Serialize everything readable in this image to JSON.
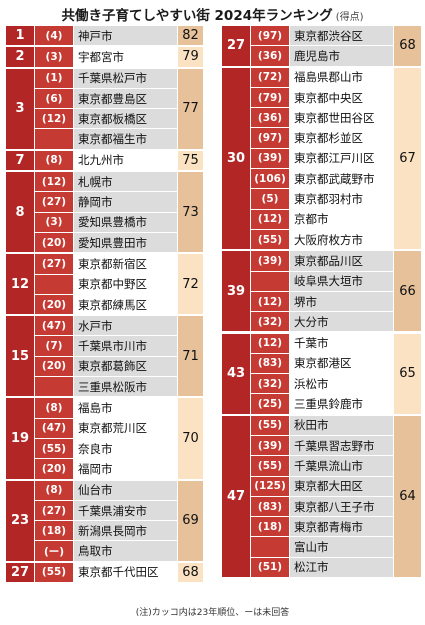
{
  "title": "共働き子育てしやすい街 2024年ランキング",
  "subtitle": "(得点)",
  "note": "(注)カッコ内は23年順位、ーは未回答",
  "left": [
    {
      "rank": "1",
      "score": "82",
      "items": [
        {
          "prev": "(4)",
          "city": "神戸市"
        }
      ]
    },
    {
      "rank": "2",
      "score": "79",
      "items": [
        {
          "prev": "(3)",
          "city": "宇都宮市"
        }
      ]
    },
    {
      "rank": "3",
      "score": "77",
      "items": [
        {
          "prev": "(1)",
          "city": "千葉県松戸市"
        },
        {
          "prev": "(6)",
          "city": "東京都豊島区"
        },
        {
          "prev": "(12)",
          "city": "東京都板橋区"
        },
        {
          "prev": "",
          "city": "東京都福生市"
        }
      ]
    },
    {
      "rank": "7",
      "score": "75",
      "items": [
        {
          "prev": "(8)",
          "city": "北九州市"
        }
      ]
    },
    {
      "rank": "8",
      "score": "73",
      "items": [
        {
          "prev": "(12)",
          "city": "札幌市"
        },
        {
          "prev": "(27)",
          "city": "静岡市"
        },
        {
          "prev": "(3)",
          "city": "愛知県豊橋市"
        },
        {
          "prev": "(20)",
          "city": "愛知県豊田市"
        }
      ]
    },
    {
      "rank": "12",
      "score": "72",
      "items": [
        {
          "prev": "(27)",
          "city": "東京都新宿区"
        },
        {
          "prev": "",
          "city": "東京都中野区"
        },
        {
          "prev": "(20)",
          "city": "東京都練馬区"
        }
      ]
    },
    {
      "rank": "15",
      "score": "71",
      "items": [
        {
          "prev": "(47)",
          "city": "水戸市"
        },
        {
          "prev": "(7)",
          "city": "千葉県市川市"
        },
        {
          "prev": "(20)",
          "city": "東京都葛飾区"
        },
        {
          "prev": "",
          "city": "三重県松阪市"
        }
      ]
    },
    {
      "rank": "19",
      "score": "70",
      "items": [
        {
          "prev": "(8)",
          "city": "福島市"
        },
        {
          "prev": "(47)",
          "city": "東京都荒川区"
        },
        {
          "prev": "(55)",
          "city": "奈良市"
        },
        {
          "prev": "(20)",
          "city": "福岡市"
        }
      ]
    },
    {
      "rank": "23",
      "score": "69",
      "items": [
        {
          "prev": "(8)",
          "city": "仙台市"
        },
        {
          "prev": "(27)",
          "city": "千葉県浦安市"
        },
        {
          "prev": "(18)",
          "city": "新潟県長岡市"
        },
        {
          "prev": "(ー)",
          "city": "鳥取市"
        }
      ]
    },
    {
      "rank": "27",
      "score": "68",
      "items": [
        {
          "prev": "(55)",
          "city": "東京都千代田区"
        }
      ]
    }
  ],
  "right": [
    {
      "rank": "27",
      "score": "68",
      "items": [
        {
          "prev": "(97)",
          "city": "東京都渋谷区"
        },
        {
          "prev": "(36)",
          "city": "鹿児島市"
        }
      ]
    },
    {
      "rank": "30",
      "score": "67",
      "items": [
        {
          "prev": "(72)",
          "city": "福島県郡山市"
        },
        {
          "prev": "(79)",
          "city": "東京都中央区"
        },
        {
          "prev": "(36)",
          "city": "東京都世田谷区"
        },
        {
          "prev": "(97)",
          "city": "東京都杉並区"
        },
        {
          "prev": "(39)",
          "city": "東京都江戸川区"
        },
        {
          "prev": "(106)",
          "city": "東京都武蔵野市"
        },
        {
          "prev": "(5)",
          "city": "東京都羽村市"
        },
        {
          "prev": "(12)",
          "city": "京都市"
        },
        {
          "prev": "(55)",
          "city": "大阪府枚方市"
        }
      ]
    },
    {
      "rank": "39",
      "score": "66",
      "items": [
        {
          "prev": "(39)",
          "city": "東京都品川区"
        },
        {
          "prev": "",
          "city": "岐阜県大垣市"
        },
        {
          "prev": "(12)",
          "city": "堺市"
        },
        {
          "prev": "(32)",
          "city": "大分市"
        }
      ]
    },
    {
      "rank": "43",
      "score": "65",
      "items": [
        {
          "prev": "(12)",
          "city": "千葉市"
        },
        {
          "prev": "(83)",
          "city": "東京都港区"
        },
        {
          "prev": "(32)",
          "city": "浜松市"
        },
        {
          "prev": "(25)",
          "city": "三重県鈴鹿市"
        }
      ]
    },
    {
      "rank": "47",
      "score": "64",
      "items": [
        {
          "prev": "(55)",
          "city": "秋田市"
        },
        {
          "prev": "(39)",
          "city": "千葉県習志野市"
        },
        {
          "prev": "(55)",
          "city": "千葉県流山市"
        },
        {
          "prev": "(125)",
          "city": "東京都大田区"
        },
        {
          "prev": "(83)",
          "city": "東京都八王子市"
        },
        {
          "prev": "(18)",
          "city": "東京都青梅市"
        },
        {
          "prev": "",
          "city": "富山市"
        },
        {
          "prev": "(51)",
          "city": "松江市"
        }
      ]
    }
  ],
  "colors": {
    "rank": "#b32626",
    "prev": "#c53a32",
    "cityShaded": "#dcdcdc",
    "cityPlain": "#ffffff",
    "scoreShaded": "#e6c19a",
    "scorePlain": "#fbe2c3"
  }
}
